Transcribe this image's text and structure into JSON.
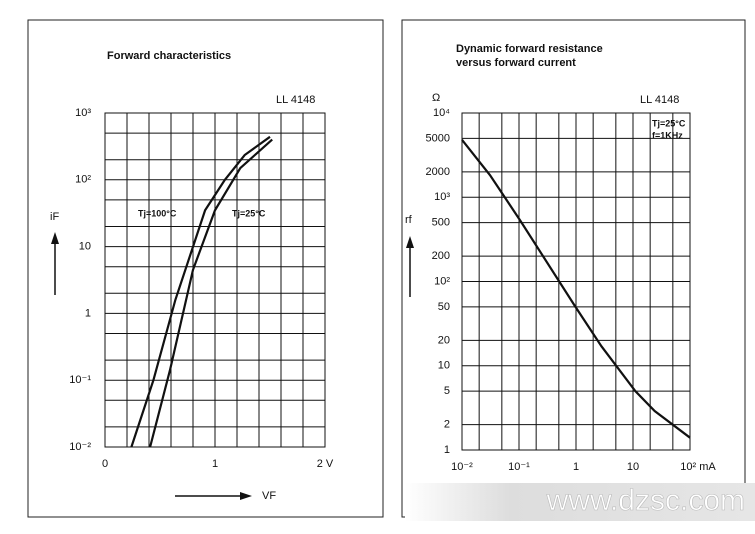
{
  "chart_data": [
    {
      "type": "line",
      "title": "Forward characteristics",
      "annotation": "LL 4148",
      "ylabel": "iF",
      "xlabel": "VF",
      "xlim": [
        0,
        2
      ],
      "ylim": [
        0.01,
        1000
      ],
      "ylog": true,
      "grid": true,
      "xticks": [
        0,
        1,
        {
          "value": 2,
          "label": "2 V"
        }
      ],
      "xminorticks": [
        0.2,
        0.4,
        0.6,
        0.8,
        1.2,
        1.4,
        1.6,
        1.8
      ],
      "yticks": [
        {
          "value": 1000,
          "label": "10³"
        },
        {
          "value": 100,
          "label": "10²"
        },
        10,
        1,
        {
          "value": 0.1,
          "label": "10⁻¹"
        },
        {
          "value": 0.01,
          "label": "10⁻²"
        }
      ],
      "yminorticks": [
        0.02,
        0.05,
        0.2,
        0.5,
        2,
        5,
        20,
        50,
        200,
        500
      ],
      "series": [
        {
          "name": "Tj=100°C",
          "color": "#111111",
          "x": [
            0.24,
            0.44,
            0.64,
            0.91,
            1.09,
            1.27,
            1.5
          ],
          "values": [
            0.01,
            0.1,
            1.6,
            35,
            100,
            235,
            440
          ]
        },
        {
          "name": "Tj=25°C",
          "color": "#111111",
          "x": [
            0.41,
            0.59,
            0.8,
            1.0,
            1.23,
            1.52
          ],
          "values": [
            0.01,
            0.14,
            4.5,
            35,
            150,
            400
          ]
        }
      ]
    },
    {
      "type": "line",
      "title": "Dynamic forward resistance",
      "subtitle": "versus forward current",
      "annotations": [
        "LL 4148",
        "Tj=25°C",
        "f=1KHz"
      ],
      "yunit": "Ω",
      "ylabel": "rf",
      "xlim": [
        0.01,
        100
      ],
      "ylim": [
        1,
        10000
      ],
      "xlog": true,
      "ylog": true,
      "grid": true,
      "xticks": [
        {
          "value": 0.01,
          "label": "10⁻²"
        },
        {
          "value": 0.1,
          "label": "10⁻¹"
        },
        1,
        10,
        {
          "value": 100,
          "label": "10² mA"
        }
      ],
      "xminorticks": [
        0.02,
        0.05,
        0.2,
        0.5,
        2,
        5,
        20,
        50
      ],
      "yticks": [
        {
          "value": 10000,
          "label": "10⁴"
        },
        5000,
        2000,
        {
          "value": 1000,
          "label": "10³"
        },
        500,
        200,
        {
          "value": 100,
          "label": "10²"
        },
        50,
        20,
        10,
        5,
        2,
        1
      ],
      "ytick_labels": [
        "5",
        "2",
        "5",
        "2",
        "5",
        "2"
      ],
      "series": [
        {
          "color": "#111111",
          "x": [
            0.01,
            0.031,
            0.105,
            0.96,
            2.8,
            11,
            24,
            100
          ],
          "values": [
            4800,
            1830,
            530,
            51,
            17,
            5,
            2.9,
            1.4
          ]
        }
      ]
    }
  ],
  "watermark": "www.dzsc.com"
}
